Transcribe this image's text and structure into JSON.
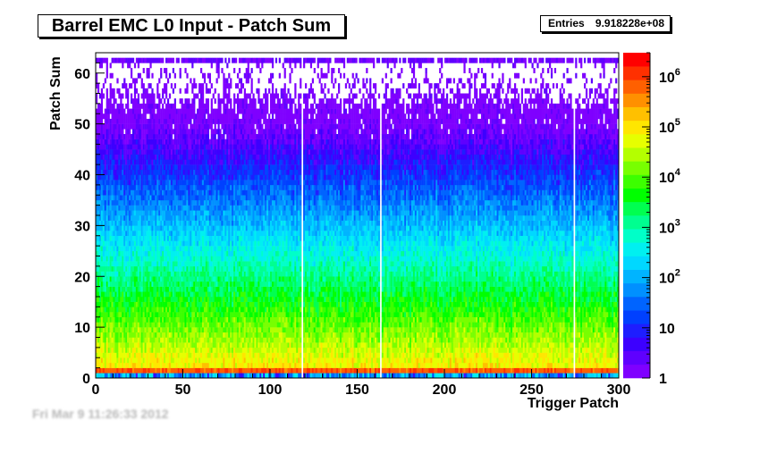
{
  "chart_data": {
    "type": "heatmap",
    "title": "Barrel EMC L0 Input - Patch Sum",
    "stats": {
      "entries_label": "Entries",
      "entries_value": "9.918228e+08"
    },
    "xlabel": "Trigger Patch",
    "ylabel": "Patch Sum",
    "xlim": [
      0,
      300
    ],
    "ylim": [
      0,
      64
    ],
    "x_ticks": [
      "0",
      "50",
      "100",
      "150",
      "200",
      "250",
      "300"
    ],
    "x_tick_values": [
      0,
      50,
      100,
      150,
      200,
      250,
      300
    ],
    "y_ticks": [
      "0",
      "10",
      "20",
      "30",
      "40",
      "50",
      "60"
    ],
    "y_tick_values": [
      0,
      10,
      20,
      30,
      40,
      50,
      60
    ],
    "z_scale": "log",
    "zlim": [
      1,
      3000000
    ],
    "colorbar_ticks": [
      {
        "value": 1,
        "base": "1",
        "exp": ""
      },
      {
        "value": 10,
        "base": "10",
        "exp": ""
      },
      {
        "value": 100,
        "base": "10",
        "exp": "2"
      },
      {
        "value": 1000,
        "base": "10",
        "exp": "3"
      },
      {
        "value": 10000,
        "base": "10",
        "exp": "4"
      },
      {
        "value": 100000,
        "base": "10",
        "exp": "5"
      },
      {
        "value": 1000000,
        "base": "10",
        "exp": "6"
      }
    ],
    "palette": [
      "#7f00ff",
      "#5f00ff",
      "#3c00ff",
      "#1e1eff",
      "#0040ff",
      "#0064ff",
      "#0090ff",
      "#00b4ff",
      "#00d8ff",
      "#00f0f0",
      "#00ffc8",
      "#00ff90",
      "#00ff50",
      "#00ff00",
      "#3cff00",
      "#78ff00",
      "#b4ff00",
      "#e6ff00",
      "#ffe600",
      "#ffc000",
      "#ff9000",
      "#ff6000",
      "#ff3000",
      "#ff0000"
    ],
    "empty_columns": [
      118,
      163,
      274
    ],
    "bin_grid": "1 patch x 1 ADC unit",
    "contents_description": "counts fall from ~1e6 at Patch Sum 0-1 to ~1 near 40-62; overflow row at 62"
  },
  "footer_text": "Fri Mar  9 11:26:33 2012"
}
